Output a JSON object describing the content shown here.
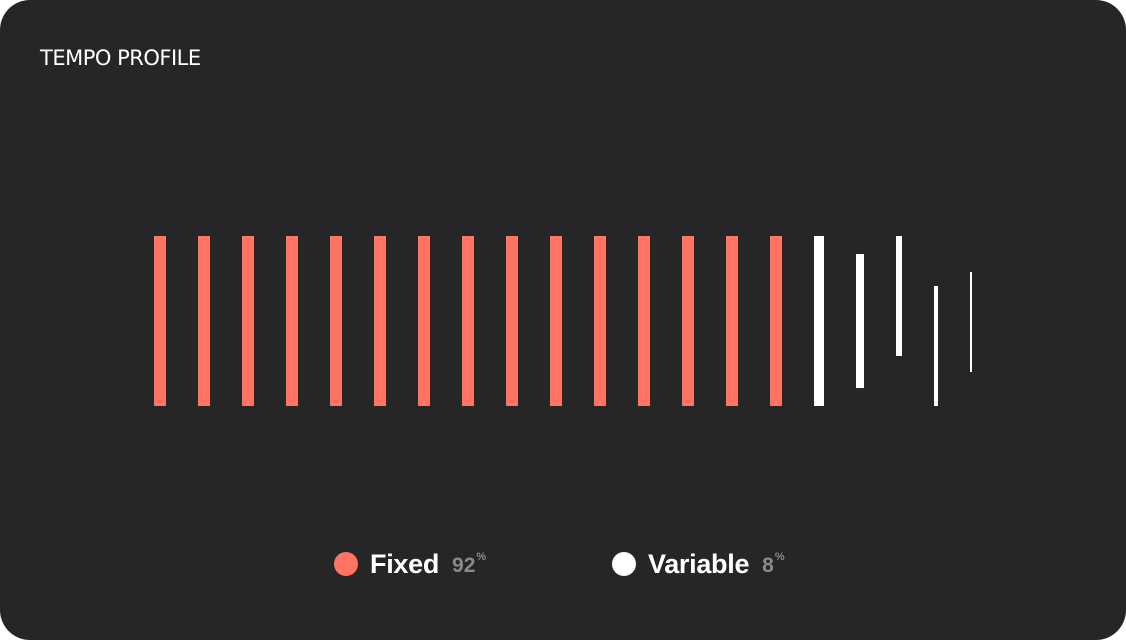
{
  "title": "TEMPO PROFILE",
  "colors": {
    "background": "#262626",
    "fixed": "#ff7465",
    "variable": "#ffffff"
  },
  "legend": [
    {
      "key": "fixed",
      "label": "Fixed",
      "value": "92",
      "unit": "%",
      "color": "#ff7465"
    },
    {
      "key": "variable",
      "label": "Variable",
      "value": "8",
      "unit": "%",
      "color": "#ffffff"
    }
  ],
  "chart_data": {
    "type": "bar",
    "series": [
      {
        "name": "Fixed",
        "value_percent": 92,
        "marks": 15
      },
      {
        "name": "Variable",
        "value_percent": 8,
        "marks": 5
      }
    ],
    "legend_position": "bottom-center",
    "grid": false
  }
}
